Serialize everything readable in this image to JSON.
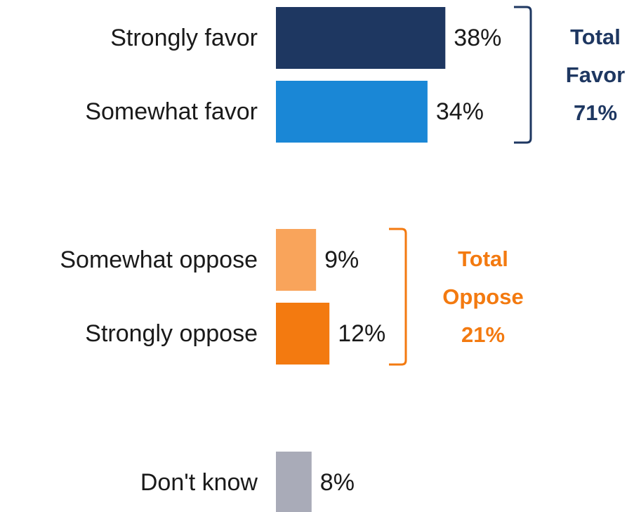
{
  "chart_data": {
    "type": "bar",
    "orientation": "horizontal",
    "categories": [
      "Strongly favor",
      "Somewhat favor",
      "Somewhat oppose",
      "Strongly oppose",
      "Don't know"
    ],
    "values": [
      38,
      34,
      9,
      12,
      8
    ],
    "value_labels": [
      "38%",
      "34%",
      "9%",
      "12%",
      "8%"
    ],
    "bar_colors": [
      "#1e3761",
      "#1a87d6",
      "#f9a45b",
      "#f37a10",
      "#a9abb8"
    ],
    "groups": [
      {
        "members": [
          "Strongly favor",
          "Somewhat favor"
        ],
        "label_lines": [
          "Total",
          "Favor",
          "71%"
        ],
        "total": 71,
        "color": "#1e3761"
      },
      {
        "members": [
          "Somewhat oppose",
          "Strongly oppose"
        ],
        "label_lines": [
          "Total",
          "Oppose",
          "21%"
        ],
        "total": 21,
        "color": "#f37a10"
      }
    ],
    "title": "",
    "xlabel": "",
    "ylabel": "",
    "grid": false,
    "legend": "none"
  }
}
